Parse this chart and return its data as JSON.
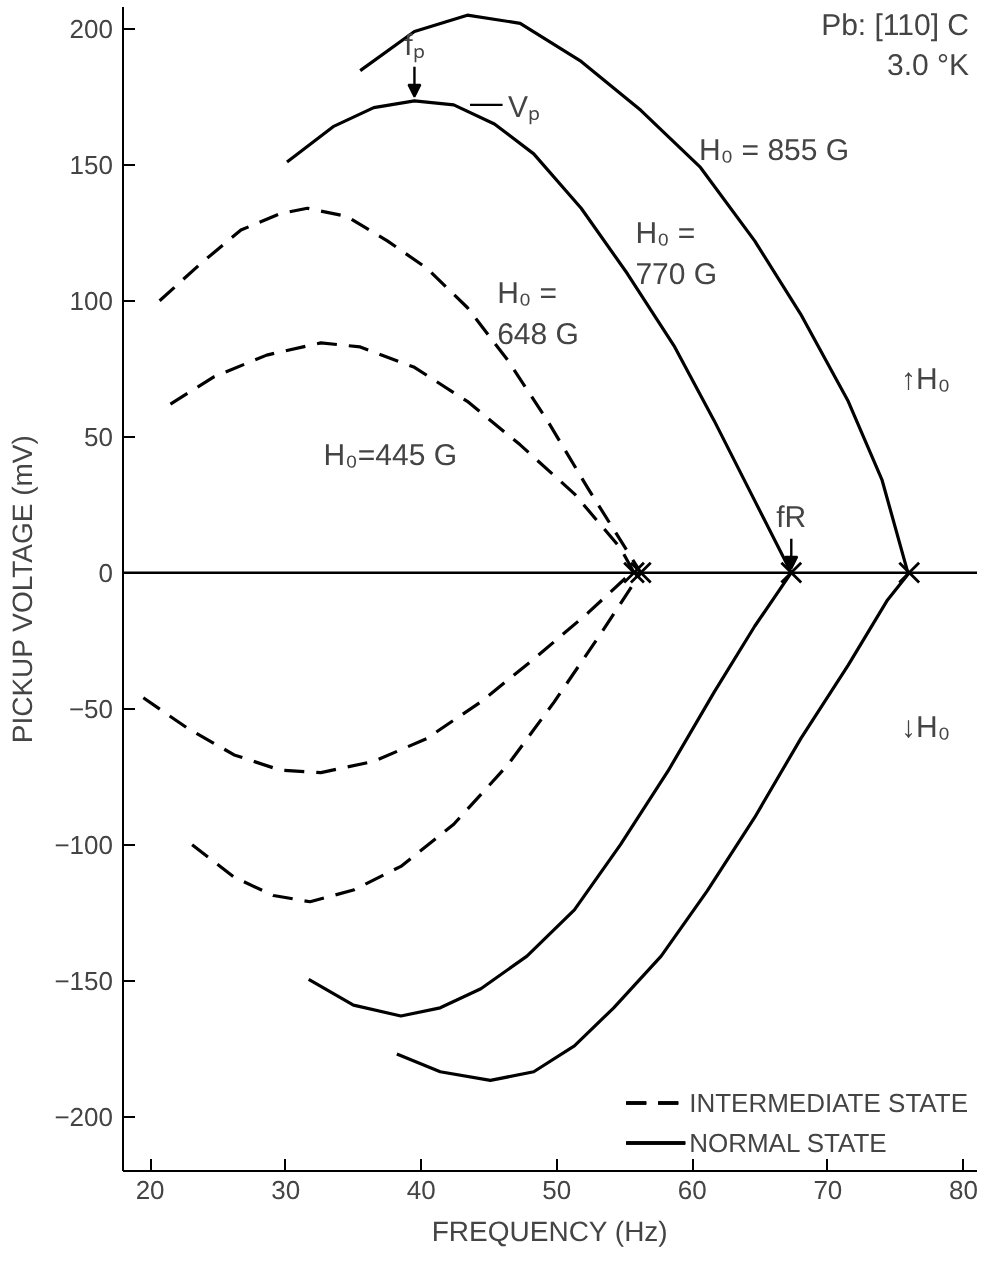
{
  "chart_data": {
    "type": "line",
    "xlabel": "FREQUENCY (Hz)",
    "ylabel": "PICKUP VOLTAGE (mV)",
    "xlim": [
      18,
      81
    ],
    "ylim": [
      -220,
      208
    ],
    "xticks": [
      20,
      30,
      40,
      50,
      60,
      70,
      80
    ],
    "yticks": [
      -200,
      -150,
      -100,
      -50,
      0,
      50,
      100,
      150,
      200
    ],
    "grid": false,
    "legend": "bottom right",
    "ref_lines": [
      {
        "axis": "y",
        "value": 0,
        "color": "#000000",
        "line_style": "solid"
      }
    ],
    "annotations": [
      "Pb: [110] C",
      "3.0 °K",
      {
        "text": "H₀ = 855 G",
        "x": 60.5,
        "y": 155
      },
      "H₀ =\n770 G",
      "H₀ =\n648 G",
      "H₀=445 G",
      {
        "text": "fₚ",
        "x": 39.5,
        "y": 173.5
      },
      "Vₚ",
      {
        "text": "fR",
        "x": 67.3,
        "y": 0
      },
      "↑H₀",
      "↓H₀"
    ],
    "series": [
      {
        "name": "INTERMEDIATE STATE",
        "color": "#000000",
        "line_style": "dashed",
        "x": [
          21.5,
          24.7,
          28.6,
          32.6,
          35.5,
          39.5,
          43.4,
          47.3,
          51.3,
          54.7,
          55.7
        ],
        "values": [
          62,
          72,
          80,
          84.5,
          83,
          75.5,
          63,
          47,
          29,
          9,
          0
        ]
      },
      {
        "color": "#000000",
        "line_style": "dashed",
        "x": [
          20.7,
          23.7,
          26.7,
          29.6,
          31.6,
          34.5,
          37.5,
          40.4,
          43.4,
          46.4,
          49.3,
          52.3,
          56.2
        ],
        "values": [
          100,
          113.5,
          126,
          132,
          134,
          131,
          122,
          112,
          97.5,
          78,
          56,
          31,
          0
        ]
      },
      {
        "name": "NORMAL STATE",
        "color": "#000000",
        "line_style": "solid",
        "x": [
          30.1,
          33.5,
          36.5,
          39.5,
          42.4,
          45.4,
          48.3,
          51.8,
          55.2,
          58.7,
          61.6,
          64.6,
          67.3
        ],
        "values": [
          151,
          164,
          171,
          173.5,
          172,
          165,
          154,
          134,
          110,
          83,
          56,
          26.5,
          0
        ]
      },
      {
        "color": "#000000",
        "line_style": "solid",
        "x": [
          35.5,
          39.5,
          43.4,
          47.3,
          51.8,
          56.2,
          60.6,
          64.6,
          68,
          71.5,
          74,
          75.9
        ],
        "values": [
          184.6,
          199,
          205,
          202,
          188,
          170,
          149,
          122,
          95,
          63,
          34,
          0
        ]
      },
      {
        "color": "#000000",
        "line_style": "dashed",
        "x": [
          19.5,
          22.7,
          26.2,
          29.6,
          32.6,
          36.5,
          40.4,
          44.4,
          48.3,
          52.3,
          55.5
        ],
        "values": [
          -46,
          -57,
          -67,
          -72.6,
          -73.5,
          -69.4,
          -61,
          -47.5,
          -31.8,
          -14.8,
          0
        ]
      },
      {
        "color": "#000000",
        "line_style": "dashed",
        "x": [
          23.1,
          26.2,
          29.1,
          31.8,
          35,
          38.5,
          42.4,
          46.4,
          49.8,
          53.3,
          56.2
        ],
        "values": [
          -100,
          -112,
          -118.7,
          -121,
          -116.7,
          -108,
          -92.5,
          -70.6,
          -47.6,
          -22,
          0
        ]
      },
      {
        "color": "#000000",
        "line_style": "solid",
        "x": [
          31.7,
          35,
          38.5,
          41.4,
          44.4,
          47.8,
          51.3,
          54.7,
          58.2,
          61.6,
          64.6,
          67.3
        ],
        "values": [
          -149.5,
          -159,
          -163,
          -160,
          -153,
          -141,
          -124,
          -100,
          -73,
          -44,
          -19.7,
          0
        ]
      },
      {
        "color": "#000000",
        "line_style": "solid",
        "x": [
          38.2,
          41.4,
          45.1,
          48.3,
          51.3,
          54.2,
          57.7,
          61.1,
          64.6,
          68,
          71.5,
          74.4,
          76
        ],
        "values": [
          -177,
          -183.5,
          -186.7,
          -183.5,
          -174,
          -160,
          -141,
          -117,
          -90,
          -61,
          -34,
          -10,
          0
        ]
      },
      {
        "type": "scatter",
        "color": "#000000",
        "marker": "cross",
        "x": [
          55.7,
          56.2,
          67.3,
          76
        ],
        "values": [
          0,
          0,
          0,
          0
        ]
      }
    ]
  }
}
